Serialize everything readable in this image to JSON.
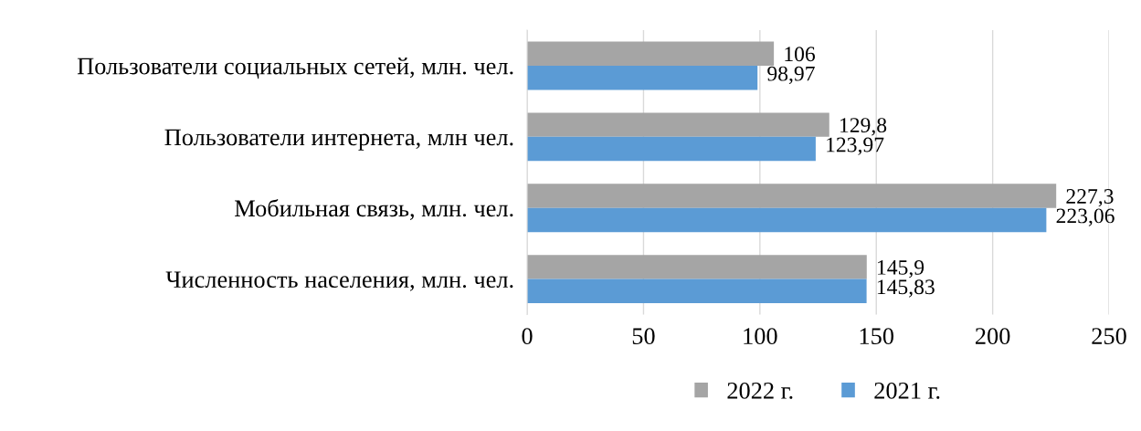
{
  "chart_data": {
    "type": "bar",
    "orientation": "horizontal",
    "categories": [
      "Пользователи социальных сетей, млн. чел.",
      "Пользователи интернета, млн чел.",
      "Мобильная связь, млн. чел.",
      "Численность населения, млн. чел."
    ],
    "series": [
      {
        "name": "2022 г.",
        "color": "#a5a5a5",
        "values": [
          106,
          129.8,
          227.3,
          145.9
        ],
        "value_labels": [
          "106",
          "129,8",
          "227,3",
          "145,9"
        ]
      },
      {
        "name": "2021 г.",
        "color": "#5b9bd5",
        "values": [
          98.97,
          123.97,
          223.06,
          145.83
        ],
        "value_labels": [
          "98,97",
          "123,97",
          "223,06",
          "145,83"
        ]
      }
    ],
    "xlim": [
      0,
      250
    ],
    "xticks": [
      0,
      50,
      100,
      150,
      200,
      250
    ],
    "grid": "x",
    "legend": "bottom"
  }
}
